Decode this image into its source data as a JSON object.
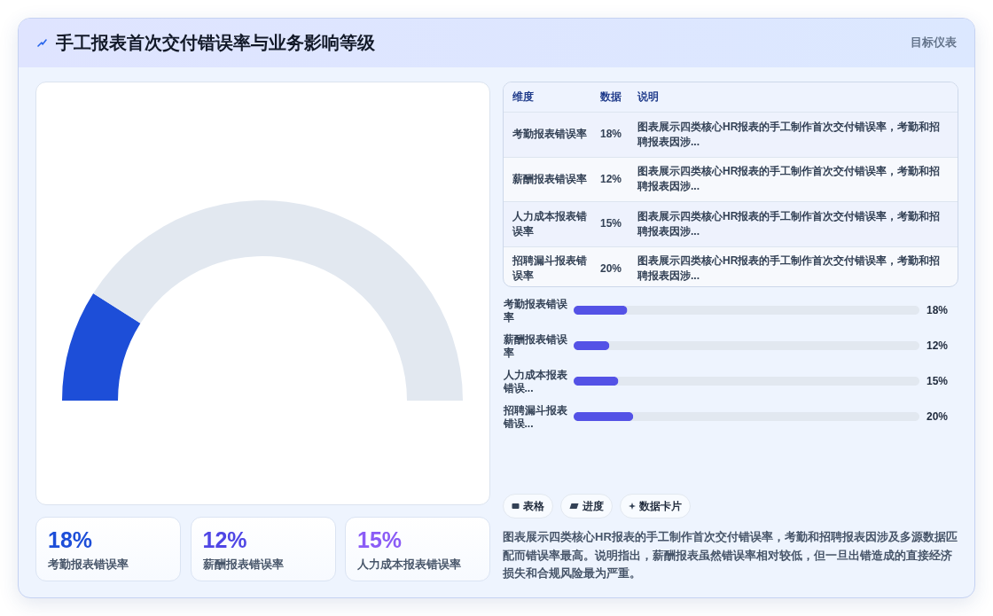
{
  "chart_data": [
    {
      "type": "donut",
      "title": "手工报表首次交付错误率与业务影响等级",
      "annotations": [
        "目标仪表"
      ],
      "categories": [
        null,
        null
      ],
      "values": [
        18,
        82
      ],
      "colors": [
        "#1d4ed8",
        "#e2e8f0"
      ]
    },
    {
      "type": "other",
      "categories": [
        "考勤报表错误率",
        "薪酬报表错误率",
        "人力成本报表错误率",
        "招聘漏斗报表错误率"
      ],
      "value_labels": [
        "18%",
        "12%",
        "15%",
        "20%"
      ],
      "annotations": [
        "维度",
        "数据",
        "说明",
        "图表展示四类核心HR报表的手工制作首次交付错误率，考勤和招聘报表因涉...",
        "图表展示四类核心HR报表的手工制作首次交付错误率，考勤和招聘报表因涉...",
        "图表展示四类核心HR报表的手工制作首次交付错误率，考勤和招聘报表因涉...",
        "图表展示四类核心HR报表的手工制作首次交付错误率，考勤和招聘报表因涉..."
      ]
    },
    {
      "type": "bar",
      "orientation": "horizontal",
      "categories": [
        "考勤报表错误率",
        "薪酬报表错误率",
        "人力成本报表错误...",
        "招聘漏斗报表错误..."
      ],
      "values": [
        18,
        12,
        15,
        20
      ],
      "value_labels": [
        "18%",
        "12%",
        "15%",
        "20%"
      ],
      "color": "#5452e6",
      "xlim": [
        0,
        116
      ],
      "tick_labels": "y"
    },
    {
      "type": "other",
      "categories": [
        "考勤报表错误率",
        "薪酬报表错误率",
        "人力成本报表错误率"
      ],
      "value_labels": [
        "18%",
        "12%",
        "15%"
      ]
    },
    {
      "type": "other",
      "categories": [
        "表格",
        "进度",
        "数据卡片"
      ],
      "annotations": [
        "图表展示四类核心HR报表的手工制作首次交付错误率，考勤和招聘报表因涉及多源数据匹配而错误率最高。说明指出，薪酬报表虽然错误率相对较低，但一旦出错造成的直接经济损失和合规风险最为严重。"
      ]
    }
  ]
}
